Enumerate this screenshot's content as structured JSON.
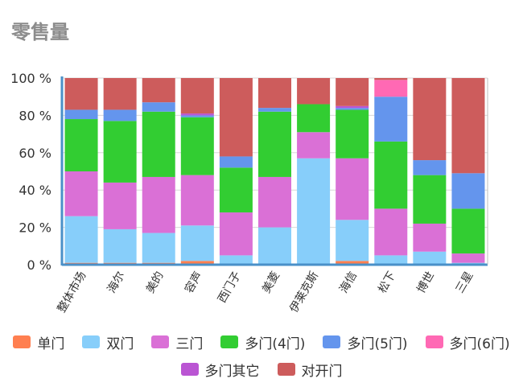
{
  "page": {
    "title": "零售量"
  },
  "chart_data": {
    "type": "bar",
    "stacked": true,
    "categories": [
      "整体市场",
      "海尔",
      "美的",
      "容声",
      "西门子",
      "美菱",
      "伊莱克斯",
      "海信",
      "松下",
      "博世",
      "三星"
    ],
    "yticks": [
      "0 %",
      "20 %",
      "40 %",
      "60 %",
      "80 %",
      "100 %"
    ],
    "ylim": [
      0,
      100
    ],
    "series": [
      {
        "name": "单门",
        "color": "#ff7f50",
        "values": [
          1,
          1,
          1,
          2,
          0,
          0,
          0,
          2,
          0,
          0,
          0
        ]
      },
      {
        "name": "双门",
        "color": "#87cefa",
        "values": [
          25,
          18,
          16,
          19,
          5,
          20,
          57,
          22,
          5,
          7,
          1
        ]
      },
      {
        "name": "三门",
        "color": "#da70d6",
        "values": [
          24,
          25,
          30,
          27,
          23,
          27,
          14,
          33,
          25,
          15,
          5
        ]
      },
      {
        "name": "多门(4门)",
        "color": "#32cd32",
        "values": [
          28,
          33,
          35,
          31,
          24,
          35,
          15,
          26,
          36,
          26,
          24
        ]
      },
      {
        "name": "多门(5门)",
        "color": "#6495ed",
        "values": [
          5,
          6,
          5,
          1,
          6,
          2,
          0,
          1,
          24,
          8,
          19
        ]
      },
      {
        "name": "多门(6门)",
        "color": "#ff69b4",
        "values": [
          0,
          0,
          0,
          0,
          0,
          0,
          0,
          0,
          9,
          0,
          0
        ]
      },
      {
        "name": "多门其它",
        "color": "#ba55d3",
        "values": [
          0,
          0,
          0,
          1,
          0,
          0,
          0,
          1,
          0,
          0,
          0
        ]
      },
      {
        "name": "对开门",
        "color": "#cd5c5c",
        "values": [
          17,
          17,
          13,
          19,
          42,
          16,
          14,
          15,
          1,
          44,
          51
        ]
      }
    ],
    "legend_rows": [
      [
        0,
        1,
        2,
        3,
        4,
        5
      ],
      [
        6,
        7
      ]
    ],
    "legend_position": "bottom",
    "grid": true
  }
}
